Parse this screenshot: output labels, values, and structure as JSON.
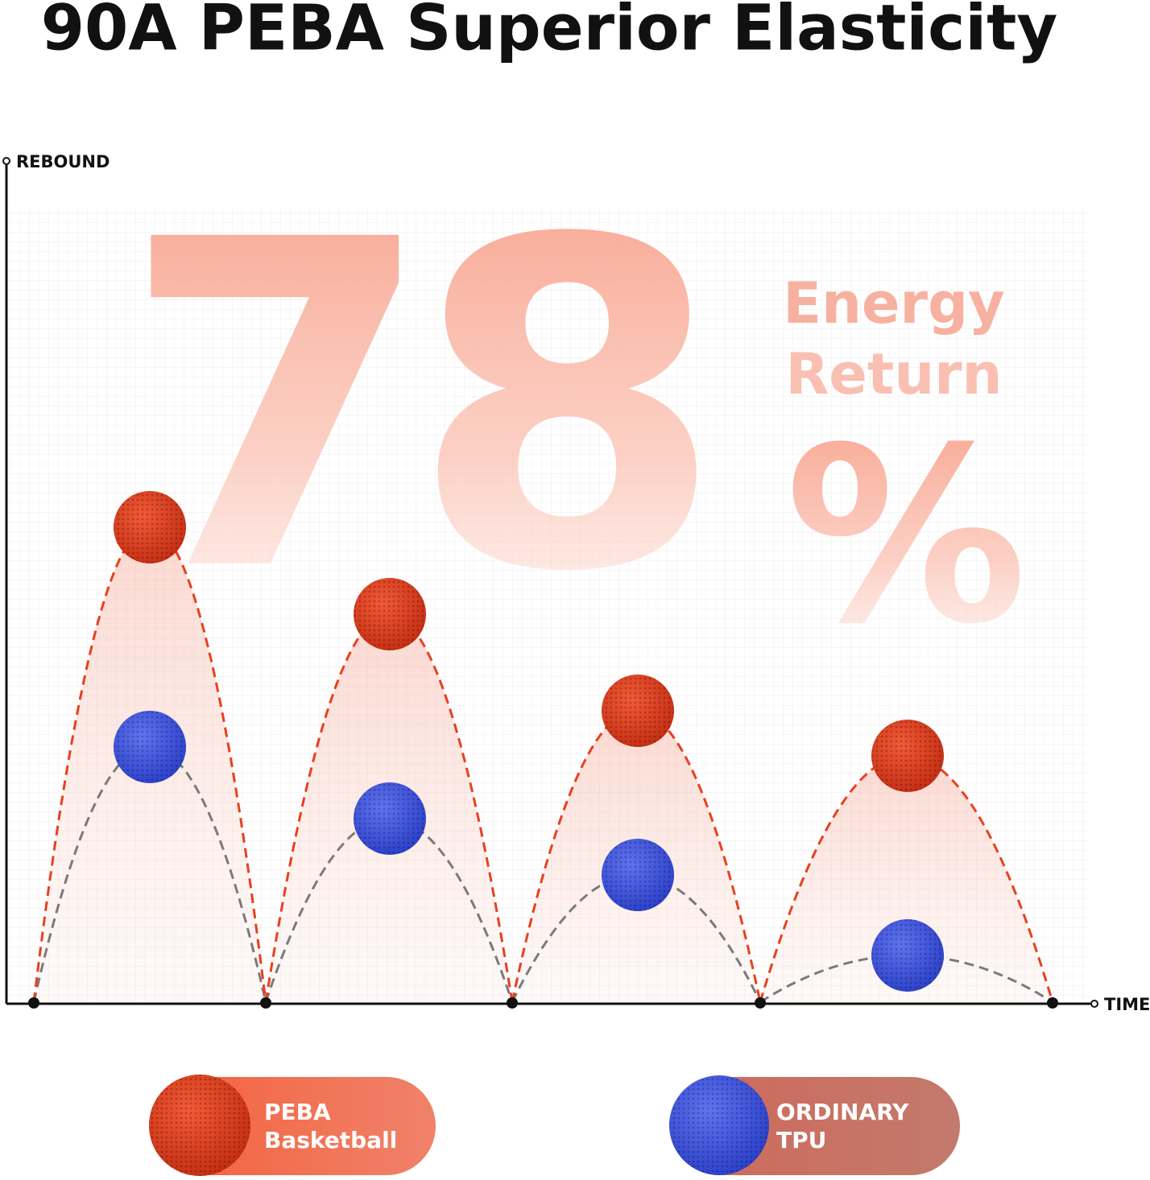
{
  "title": "90A PEBA Superior Elasticity",
  "y_axis_label": "REBOUND",
  "x_axis_label": "TIME",
  "headline": {
    "number": "78",
    "symbol": "%",
    "caption_line_1": "Energy",
    "caption_line_2": "Return"
  },
  "legend": [
    {
      "line_1": "PEBA",
      "line_2": "Basketball"
    },
    {
      "line_1": "ORDINARY",
      "line_2": "TPU"
    }
  ]
}
